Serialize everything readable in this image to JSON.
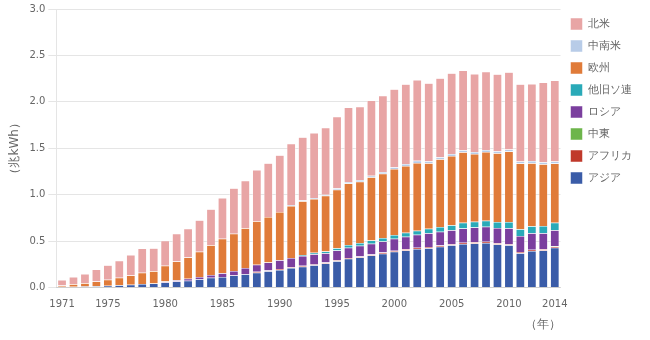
{
  "chart_data": {
    "type": "bar",
    "stacked": true,
    "categories": [
      "1971",
      null,
      null,
      null,
      "1975",
      null,
      null,
      null,
      null,
      "1980",
      null,
      null,
      null,
      null,
      "1985",
      null,
      null,
      null,
      null,
      "1990",
      null,
      null,
      null,
      null,
      "1995",
      null,
      null,
      null,
      null,
      "2000",
      null,
      null,
      null,
      null,
      "2005",
      null,
      null,
      null,
      null,
      "2010",
      null,
      null,
      null,
      "2014"
    ],
    "series": [
      {
        "name": "アジア",
        "color": "#3A5CA8",
        "values": [
          0.008,
          0.01,
          0.012,
          0.015,
          0.02,
          0.025,
          0.03,
          0.04,
          0.045,
          0.055,
          0.065,
          0.075,
          0.09,
          0.105,
          0.115,
          0.13,
          0.145,
          0.16,
          0.175,
          0.19,
          0.21,
          0.225,
          0.24,
          0.26,
          0.285,
          0.31,
          0.325,
          0.345,
          0.365,
          0.385,
          0.4,
          0.415,
          0.425,
          0.44,
          0.455,
          0.47,
          0.475,
          0.48,
          0.465,
          0.455,
          0.37,
          0.395,
          0.4,
          0.43
        ]
      },
      {
        "name": "アフリカ",
        "color": "#C0392B",
        "values": [
          0.0,
          0.0,
          0.0,
          0.0,
          0.0,
          0.0,
          0.0,
          0.0,
          0.0,
          0.0,
          0.0,
          0.0,
          0.0,
          0.0,
          0.0,
          0.0,
          0.0,
          0.01,
          0.01,
          0.01,
          0.01,
          0.01,
          0.01,
          0.01,
          0.01,
          0.01,
          0.01,
          0.012,
          0.012,
          0.012,
          0.012,
          0.013,
          0.013,
          0.013,
          0.013,
          0.013,
          0.013,
          0.013,
          0.013,
          0.013,
          0.013,
          0.013,
          0.013,
          0.013
        ]
      },
      {
        "name": "中東",
        "color": "#6DB54B",
        "values": [
          0.0,
          0.0,
          0.0,
          0.0,
          0.0,
          0.0,
          0.0,
          0.0,
          0.0,
          0.0,
          0.0,
          0.0,
          0.0,
          0.0,
          0.0,
          0.0,
          0.0,
          0.0,
          0.0,
          0.0,
          0.0,
          0.0,
          0.0,
          0.0,
          0.0,
          0.0,
          0.0,
          0.0,
          0.0,
          0.0,
          0.0,
          0.0,
          0.0,
          0.0,
          0.0,
          0.0,
          0.0,
          0.0,
          0.0,
          0.0,
          0.0,
          0.0,
          0.0,
          0.005
        ]
      },
      {
        "name": "ロシア",
        "color": "#7B3F9E",
        "values": [
          0.0,
          0.0,
          0.0,
          0.0,
          0.0,
          0.0,
          0.0,
          0.0,
          0.0,
          0.01,
          0.015,
          0.02,
          0.025,
          0.03,
          0.04,
          0.05,
          0.065,
          0.075,
          0.085,
          0.095,
          0.1,
          0.105,
          0.11,
          0.1,
          0.105,
          0.11,
          0.115,
          0.115,
          0.12,
          0.13,
          0.135,
          0.14,
          0.148,
          0.149,
          0.149,
          0.154,
          0.159,
          0.163,
          0.163,
          0.17,
          0.172,
          0.177,
          0.172,
          0.169
        ]
      },
      {
        "name": "他旧ソ連",
        "color": "#2AAAB8",
        "values": [
          0.0,
          0.0,
          0.0,
          0.0,
          0.0,
          0.0,
          0.0,
          0.0,
          0.0,
          0.0,
          0.0,
          0.0,
          0.0,
          0.0,
          0.0,
          0.0,
          0.0,
          0.0,
          0.0,
          0.0,
          0.0,
          0.01,
          0.015,
          0.02,
          0.025,
          0.03,
          0.03,
          0.035,
          0.038,
          0.04,
          0.043,
          0.045,
          0.048,
          0.05,
          0.055,
          0.06,
          0.062,
          0.065,
          0.065,
          0.068,
          0.072,
          0.075,
          0.077,
          0.08
        ]
      },
      {
        "name": "欧州",
        "color": "#E07B39",
        "values": [
          0.015,
          0.025,
          0.035,
          0.05,
          0.065,
          0.08,
          0.1,
          0.12,
          0.13,
          0.17,
          0.2,
          0.23,
          0.27,
          0.32,
          0.37,
          0.4,
          0.43,
          0.47,
          0.49,
          0.52,
          0.56,
          0.58,
          0.58,
          0.6,
          0.63,
          0.66,
          0.66,
          0.68,
          0.69,
          0.71,
          0.72,
          0.73,
          0.705,
          0.73,
          0.745,
          0.76,
          0.73,
          0.74,
          0.74,
          0.76,
          0.71,
          0.68,
          0.665,
          0.64
        ]
      },
      {
        "name": "中南米",
        "color": "#B8CCE8",
        "values": [
          0.0,
          0.0,
          0.0,
          0.0,
          0.0,
          0.0,
          0.0,
          0.0,
          0.0,
          0.0,
          0.0,
          0.0,
          0.0,
          0.0,
          0.0,
          0.0,
          0.0,
          0.0,
          0.0,
          0.0,
          0.01,
          0.01,
          0.01,
          0.01,
          0.015,
          0.018,
          0.018,
          0.018,
          0.02,
          0.02,
          0.02,
          0.022,
          0.022,
          0.022,
          0.022,
          0.022,
          0.022,
          0.022,
          0.022,
          0.022,
          0.022,
          0.022,
          0.022,
          0.022
        ]
      },
      {
        "name": "北米",
        "color": "#E8A5A5",
        "values": [
          0.06,
          0.08,
          0.1,
          0.13,
          0.155,
          0.185,
          0.22,
          0.26,
          0.25,
          0.27,
          0.3,
          0.31,
          0.34,
          0.39,
          0.44,
          0.49,
          0.51,
          0.55,
          0.58,
          0.61,
          0.66,
          0.68,
          0.7,
          0.72,
          0.77,
          0.8,
          0.79,
          0.81,
          0.82,
          0.84,
          0.86,
          0.87,
          0.84,
          0.85,
          0.87,
          0.86,
          0.84,
          0.84,
          0.83,
          0.83,
          0.83,
          0.83,
          0.86,
          0.87
        ]
      }
    ],
    "x_label": "（年）",
    "y_label": "（兆kWh）",
    "ylim": [
      0,
      3
    ],
    "yticks": [
      {
        "value": 0,
        "label": "0.0"
      },
      0.5,
      {
        "value": 1,
        "label": "1.0"
      },
      1.5,
      {
        "value": 2,
        "label": "2.0"
      },
      2.5,
      {
        "value": 3,
        "label": "3.0"
      }
    ],
    "grid": "y",
    "legend": "right"
  }
}
